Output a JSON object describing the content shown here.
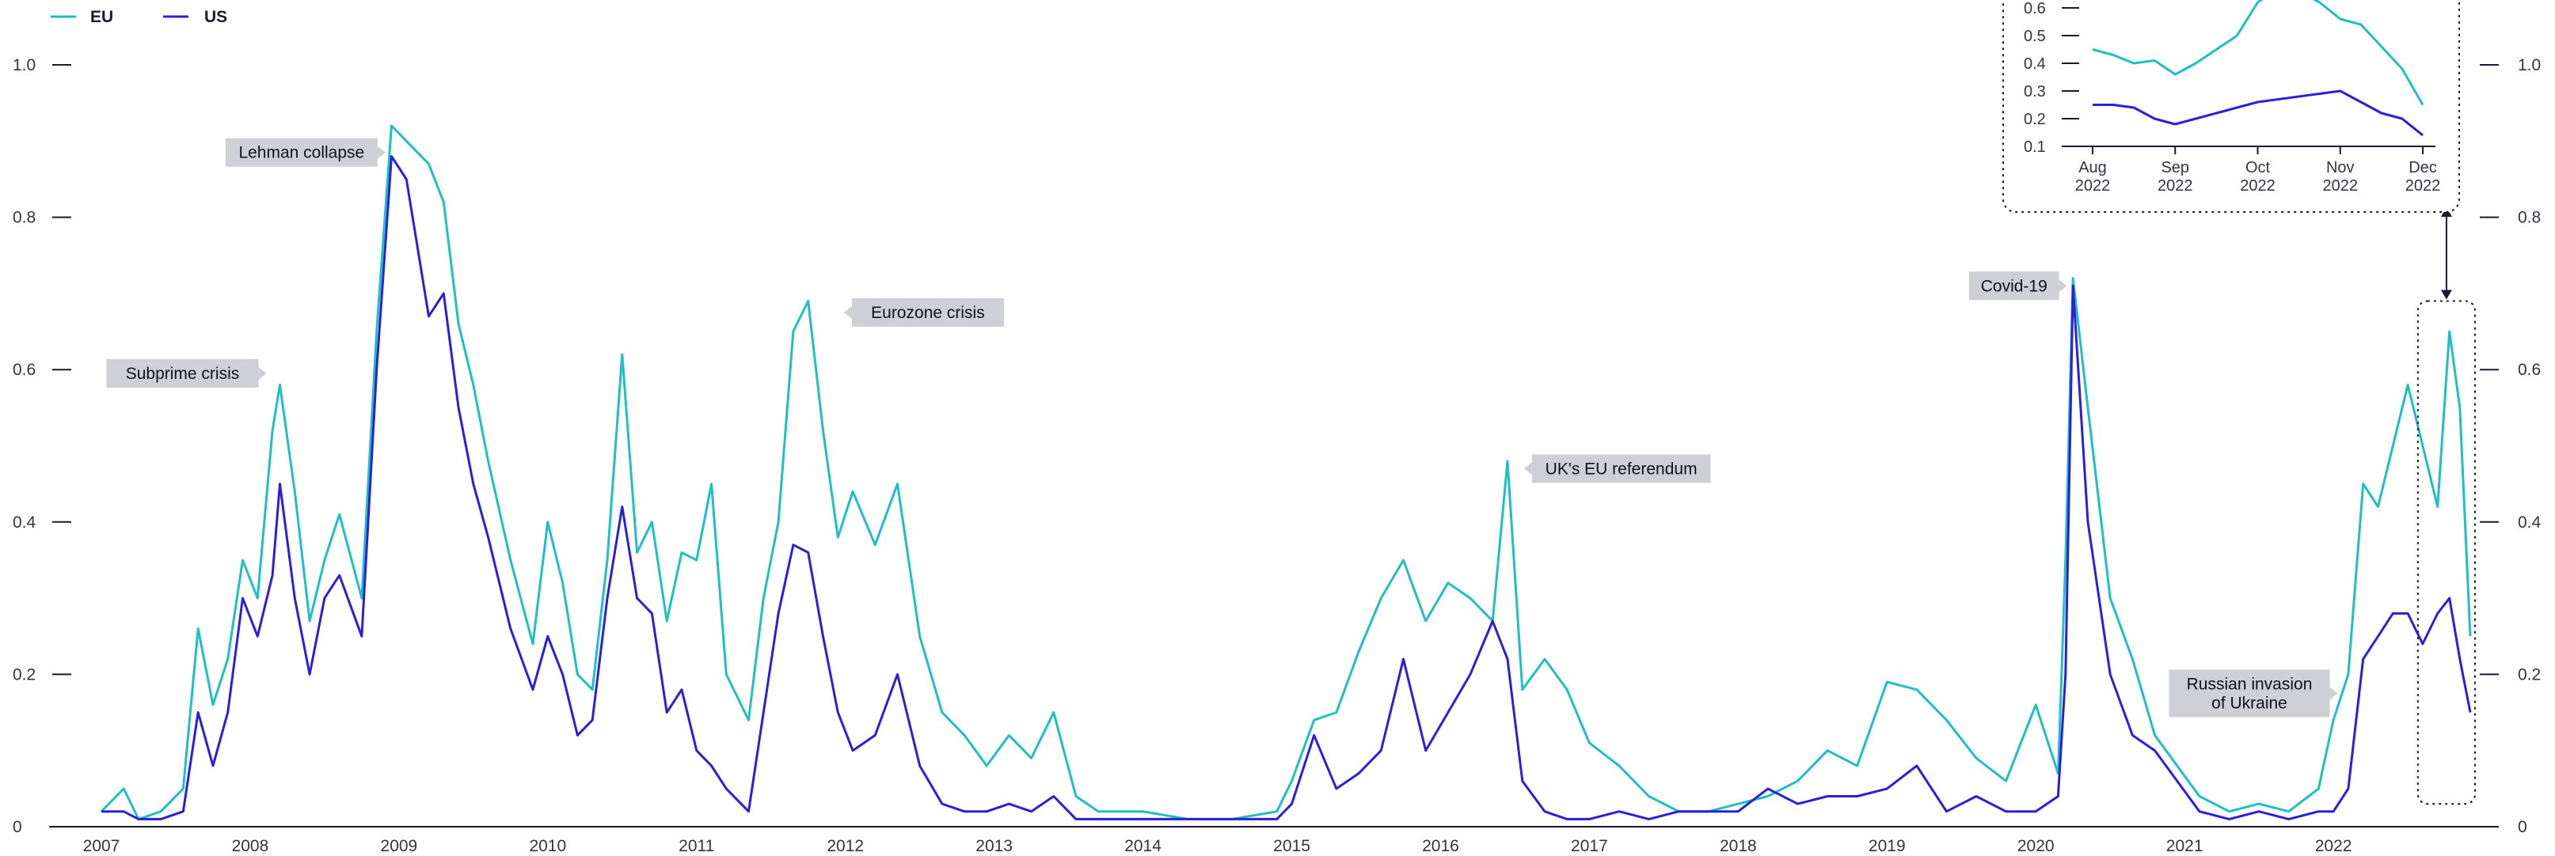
{
  "chart_data": {
    "type": "line",
    "x_range": [
      2007.0,
      2022.92
    ],
    "ylim": [
      0,
      1.0
    ],
    "y_ticks": [
      0,
      0.2,
      0.4,
      0.6,
      0.8,
      1.0
    ],
    "y_tick_labels": [
      "0",
      "0.2",
      "0.4",
      "0.6",
      "0.8",
      "1.0"
    ],
    "x_ticks": [
      2007,
      2008,
      2009,
      2010,
      2011,
      2012,
      2013,
      2014,
      2015,
      2016,
      2017,
      2018,
      2019,
      2020,
      2021,
      2022
    ],
    "x_tick_labels": [
      "2007",
      "2008",
      "2009",
      "2010",
      "2011",
      "2012",
      "2013",
      "2014",
      "2015",
      "2016",
      "2017",
      "2018",
      "2019",
      "2020",
      "2021",
      "2022"
    ],
    "legend": {
      "placement": "top-left",
      "entries": [
        "EU",
        "US"
      ]
    },
    "grid": false,
    "colors": {
      "EU": "#1fbfc4",
      "US": "#2d1fd9",
      "annotation_bg": "#cfcfd6",
      "axis": "#1a1a2e"
    },
    "series": [
      {
        "name": "EU",
        "x": [
          2007.0,
          2007.15,
          2007.25,
          2007.4,
          2007.55,
          2007.65,
          2007.75,
          2007.85,
          2007.95,
          2008.05,
          2008.15,
          2008.2,
          2008.3,
          2008.4,
          2008.5,
          2008.6,
          2008.75,
          2008.85,
          2008.95,
          2009.05,
          2009.2,
          2009.3,
          2009.4,
          2009.5,
          2009.6,
          2009.75,
          2009.9,
          2010.0,
          2010.1,
          2010.2,
          2010.3,
          2010.4,
          2010.5,
          2010.6,
          2010.7,
          2010.8,
          2010.9,
          2011.0,
          2011.1,
          2011.2,
          2011.35,
          2011.45,
          2011.55,
          2011.65,
          2011.75,
          2011.85,
          2011.95,
          2012.05,
          2012.2,
          2012.35,
          2012.5,
          2012.65,
          2012.8,
          2012.95,
          2013.1,
          2013.25,
          2013.4,
          2013.55,
          2013.7,
          2013.85,
          2014.0,
          2014.3,
          2014.6,
          2014.9,
          2015.0,
          2015.15,
          2015.3,
          2015.45,
          2015.6,
          2015.75,
          2015.9,
          2016.05,
          2016.2,
          2016.35,
          2016.45,
          2016.55,
          2016.7,
          2016.85,
          2017.0,
          2017.2,
          2017.4,
          2017.6,
          2017.8,
          2018.0,
          2018.2,
          2018.4,
          2018.6,
          2018.8,
          2019.0,
          2019.2,
          2019.4,
          2019.6,
          2019.8,
          2020.0,
          2020.15,
          2020.2,
          2020.25,
          2020.35,
          2020.5,
          2020.65,
          2020.8,
          2020.95,
          2021.1,
          2021.3,
          2021.5,
          2021.7,
          2021.9,
          2022.0,
          2022.1,
          2022.2,
          2022.3,
          2022.4,
          2022.5,
          2022.6,
          2022.7,
          2022.78,
          2022.85,
          2022.92
        ],
        "values": [
          0.02,
          0.05,
          0.01,
          0.02,
          0.05,
          0.26,
          0.16,
          0.22,
          0.35,
          0.3,
          0.52,
          0.58,
          0.44,
          0.27,
          0.35,
          0.41,
          0.3,
          0.65,
          0.92,
          0.9,
          0.87,
          0.82,
          0.66,
          0.58,
          0.48,
          0.35,
          0.24,
          0.4,
          0.32,
          0.2,
          0.18,
          0.35,
          0.62,
          0.36,
          0.4,
          0.27,
          0.36,
          0.35,
          0.45,
          0.2,
          0.14,
          0.3,
          0.4,
          0.65,
          0.69,
          0.52,
          0.38,
          0.44,
          0.37,
          0.45,
          0.25,
          0.15,
          0.12,
          0.08,
          0.12,
          0.09,
          0.15,
          0.04,
          0.02,
          0.02,
          0.02,
          0.01,
          0.01,
          0.02,
          0.06,
          0.14,
          0.15,
          0.23,
          0.3,
          0.35,
          0.27,
          0.32,
          0.3,
          0.27,
          0.48,
          0.18,
          0.22,
          0.18,
          0.11,
          0.08,
          0.04,
          0.02,
          0.02,
          0.03,
          0.04,
          0.06,
          0.1,
          0.08,
          0.19,
          0.18,
          0.14,
          0.09,
          0.06,
          0.16,
          0.07,
          0.35,
          0.72,
          0.55,
          0.3,
          0.22,
          0.12,
          0.08,
          0.04,
          0.02,
          0.03,
          0.02,
          0.05,
          0.14,
          0.2,
          0.45,
          0.42,
          0.5,
          0.58,
          0.5,
          0.42,
          0.65,
          0.55,
          0.25
        ]
      },
      {
        "name": "US",
        "x": [
          2007.0,
          2007.15,
          2007.25,
          2007.4,
          2007.55,
          2007.65,
          2007.75,
          2007.85,
          2007.95,
          2008.05,
          2008.15,
          2008.2,
          2008.3,
          2008.4,
          2008.5,
          2008.6,
          2008.75,
          2008.85,
          2008.95,
          2009.05,
          2009.2,
          2009.3,
          2009.4,
          2009.5,
          2009.6,
          2009.75,
          2009.9,
          2010.0,
          2010.1,
          2010.2,
          2010.3,
          2010.4,
          2010.5,
          2010.6,
          2010.7,
          2010.8,
          2010.9,
          2011.0,
          2011.1,
          2011.2,
          2011.35,
          2011.45,
          2011.55,
          2011.65,
          2011.75,
          2011.85,
          2011.95,
          2012.05,
          2012.2,
          2012.35,
          2012.5,
          2012.65,
          2012.8,
          2012.95,
          2013.1,
          2013.25,
          2013.4,
          2013.55,
          2013.7,
          2013.85,
          2014.0,
          2014.3,
          2014.6,
          2014.9,
          2015.0,
          2015.15,
          2015.3,
          2015.45,
          2015.6,
          2015.75,
          2015.9,
          2016.05,
          2016.2,
          2016.35,
          2016.45,
          2016.55,
          2016.7,
          2016.85,
          2017.0,
          2017.2,
          2017.4,
          2017.6,
          2017.8,
          2018.0,
          2018.2,
          2018.4,
          2018.6,
          2018.8,
          2019.0,
          2019.2,
          2019.4,
          2019.6,
          2019.8,
          2020.0,
          2020.15,
          2020.2,
          2020.25,
          2020.35,
          2020.5,
          2020.65,
          2020.8,
          2020.95,
          2021.1,
          2021.3,
          2021.5,
          2021.7,
          2021.9,
          2022.0,
          2022.1,
          2022.2,
          2022.3,
          2022.4,
          2022.5,
          2022.6,
          2022.7,
          2022.78,
          2022.85,
          2022.92
        ],
        "values": [
          0.02,
          0.02,
          0.01,
          0.01,
          0.02,
          0.15,
          0.08,
          0.15,
          0.3,
          0.25,
          0.33,
          0.45,
          0.3,
          0.2,
          0.3,
          0.33,
          0.25,
          0.6,
          0.88,
          0.85,
          0.67,
          0.7,
          0.55,
          0.45,
          0.38,
          0.26,
          0.18,
          0.25,
          0.2,
          0.12,
          0.14,
          0.3,
          0.42,
          0.3,
          0.28,
          0.15,
          0.18,
          0.1,
          0.08,
          0.05,
          0.02,
          0.15,
          0.28,
          0.37,
          0.36,
          0.25,
          0.15,
          0.1,
          0.12,
          0.2,
          0.08,
          0.03,
          0.02,
          0.02,
          0.03,
          0.02,
          0.04,
          0.01,
          0.01,
          0.01,
          0.01,
          0.01,
          0.01,
          0.01,
          0.03,
          0.12,
          0.05,
          0.07,
          0.1,
          0.22,
          0.1,
          0.15,
          0.2,
          0.27,
          0.22,
          0.06,
          0.02,
          0.01,
          0.01,
          0.02,
          0.01,
          0.02,
          0.02,
          0.02,
          0.05,
          0.03,
          0.04,
          0.04,
          0.05,
          0.08,
          0.02,
          0.04,
          0.02,
          0.02,
          0.04,
          0.2,
          0.71,
          0.4,
          0.2,
          0.12,
          0.1,
          0.06,
          0.02,
          0.01,
          0.02,
          0.01,
          0.02,
          0.02,
          0.05,
          0.22,
          0.25,
          0.28,
          0.28,
          0.24,
          0.28,
          0.3,
          0.22,
          0.15
        ]
      }
    ],
    "annotations": [
      {
        "label": "Lehman collapse",
        "x": 2008.92,
        "y": 0.885,
        "side": "left"
      },
      {
        "label": "Subprime crisis",
        "x": 2008.12,
        "y": 0.595,
        "side": "left"
      },
      {
        "label": "Eurozone crisis",
        "x": 2011.98,
        "y": 0.675,
        "side": "right"
      },
      {
        "label": "UK's EU referendum",
        "x": 2016.55,
        "y": 0.47,
        "side": "right"
      },
      {
        "label": "Covid-19",
        "x": 2020.22,
        "y": 0.71,
        "side": "left"
      },
      {
        "label": "Russian invasion\nof Ukraine",
        "x": 2022.04,
        "y": 0.175,
        "side": "left"
      }
    ],
    "highlight_window": {
      "x": [
        2022.6,
        2022.92
      ],
      "y": [
        0.03,
        0.69
      ]
    },
    "inset": {
      "type": "line",
      "x_labels": [
        [
          "Aug",
          "2022"
        ],
        [
          "Sep",
          "2022"
        ],
        [
          "Oct",
          "2022"
        ],
        [
          "Nov",
          "2022"
        ],
        [
          "Dec",
          "2022"
        ]
      ],
      "y_ticks": [
        0.1,
        0.2,
        0.3,
        0.4,
        0.5,
        0.6
      ],
      "y_tick_labels": [
        "0.1",
        "0.2",
        "0.3",
        "0.4",
        "0.5",
        "0.6"
      ],
      "ylim": [
        0.1,
        0.7
      ],
      "series": [
        {
          "name": "EU",
          "x": [
            0,
            0.25,
            0.5,
            0.75,
            1.0,
            1.25,
            1.5,
            1.75,
            2.0,
            2.25,
            2.5,
            2.75,
            3.0,
            3.25,
            3.5,
            3.75,
            4.0
          ],
          "values": [
            0.45,
            0.43,
            0.4,
            0.41,
            0.36,
            0.4,
            0.45,
            0.5,
            0.62,
            0.67,
            0.66,
            0.62,
            0.56,
            0.54,
            0.46,
            0.38,
            0.25
          ]
        },
        {
          "name": "US",
          "x": [
            0,
            0.25,
            0.5,
            0.75,
            1.0,
            1.25,
            1.5,
            1.75,
            2.0,
            2.25,
            2.5,
            2.75,
            3.0,
            3.25,
            3.5,
            3.75,
            4.0
          ],
          "values": [
            0.25,
            0.25,
            0.24,
            0.2,
            0.18,
            0.2,
            0.22,
            0.24,
            0.26,
            0.27,
            0.28,
            0.29,
            0.3,
            0.26,
            0.22,
            0.2,
            0.14
          ]
        }
      ]
    }
  }
}
